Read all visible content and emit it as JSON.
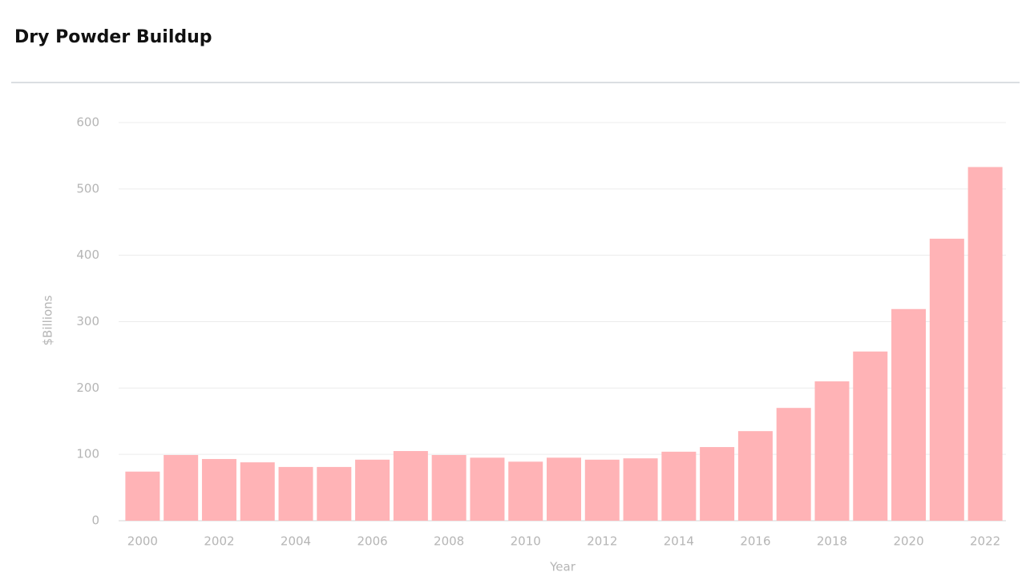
{
  "chart_data": {
    "type": "bar",
    "title": "Dry Powder Buildup",
    "x_label": "Year",
    "y_label": "$Billions",
    "categories": [
      "2000",
      null,
      "2002",
      null,
      "2004",
      null,
      "2006",
      null,
      "2008",
      null,
      "2010",
      null,
      "2012",
      null,
      "2014",
      null,
      "2016",
      null,
      "2018",
      null,
      "2020",
      null,
      "2022"
    ],
    "values": [
      74,
      99,
      93,
      88,
      81,
      81,
      92,
      105,
      99,
      95,
      89,
      95,
      92,
      94,
      104,
      111,
      135,
      170,
      210,
      255,
      319,
      425,
      533
    ],
    "color": "#ffb3b6",
    "ylim": [
      0,
      600
    ],
    "yticks": [
      0,
      100,
      200,
      300,
      400,
      500,
      600
    ],
    "grid": true
  }
}
